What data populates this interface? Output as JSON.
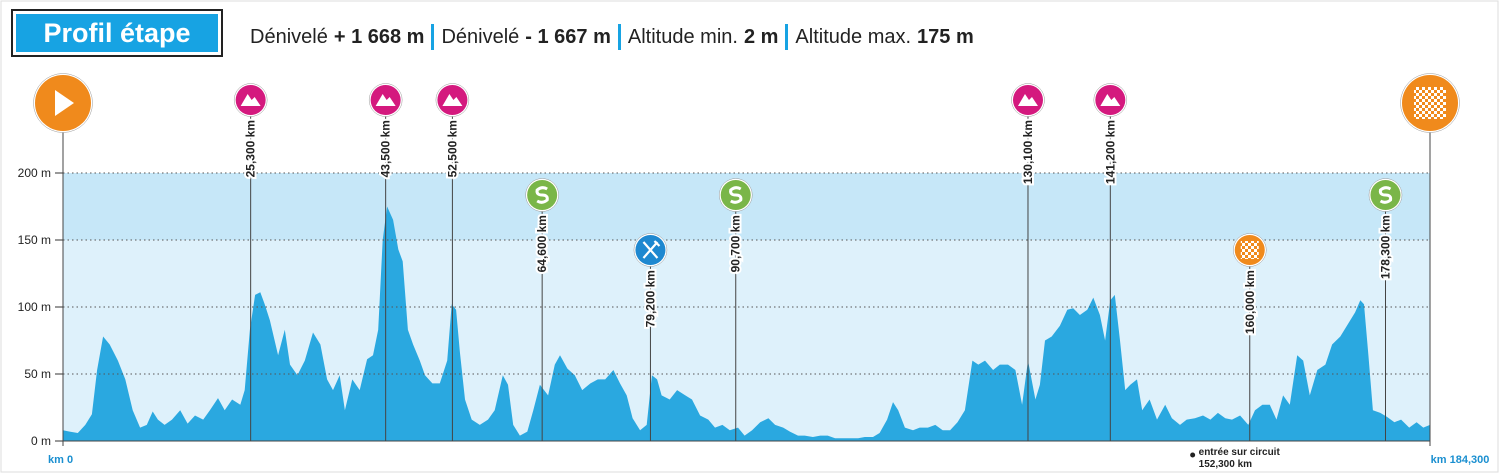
{
  "header": {
    "title": "Profil étape",
    "stats": [
      {
        "label": "Dénivelé",
        "value": "+ 1 668 m"
      },
      {
        "label": "Dénivelé",
        "value": "- 1 667 m"
      },
      {
        "label": "Altitude min.",
        "value": "2 m"
      },
      {
        "label": "Altitude max.",
        "value": "175 m"
      }
    ]
  },
  "chart_data": {
    "type": "area",
    "color": "#2aa8e0",
    "x": [
      0,
      0.9,
      2.0,
      3.0,
      3.9,
      4.6,
      5.4,
      6.3,
      7.4,
      8.4,
      9.4,
      10.4,
      11.3,
      12.1,
      12.8,
      13.7,
      14.7,
      15.8,
      16.8,
      17.8,
      18.9,
      19.8,
      20.9,
      21.8,
      22.8,
      23.9,
      24.5,
      25.2,
      25.9,
      26.6,
      27.2,
      27.9,
      29.0,
      29.9,
      30.6,
      31.6,
      32.6,
      33.7,
      34.7,
      35.6,
      36.4,
      37.3,
      38.0,
      39.0,
      40.0,
      41.0,
      41.8,
      42.5,
      43.1,
      43.7,
      44.5,
      45.2,
      45.8,
      46.5,
      47.2,
      48.1,
      48.8,
      49.8,
      50.8,
      51.8,
      52.4,
      53.0,
      53.5,
      54.2,
      55.1,
      56.2,
      57.3,
      58.2,
      59.3,
      60.0,
      60.7,
      61.6,
      62.6,
      63.4,
      64.3,
      65.4,
      66.3,
      67.0,
      68.0,
      69.0,
      70.0,
      71.1,
      72.1,
      73.1,
      74.2,
      75.1,
      76.0,
      76.8,
      77.8,
      78.7,
      79.4,
      80.1,
      80.7,
      81.8,
      82.8,
      83.9,
      84.8,
      85.9,
      87.0,
      87.9,
      88.9,
      89.9,
      91.0,
      91.9,
      92.9,
      94.0,
      95.1,
      96.0,
      97.1,
      98.0,
      99.1,
      100.0,
      101.1,
      102.1,
      103.1,
      104.1,
      105.2,
      106.1,
      107.2,
      108.1,
      109.2,
      110.1,
      111.1,
      111.9,
      112.6,
      113.5,
      114.6,
      115.5,
      116.6,
      117.6,
      118.6,
      119.6,
      120.6,
      121.6,
      122.6,
      123.4,
      124.3,
      125.4,
      126.3,
      127.4,
      128.4,
      129.3,
      130.1,
      131.1,
      131.7,
      132.4,
      133.3,
      134.4,
      135.4,
      136.2,
      137.1,
      138.1,
      138.9,
      139.8,
      140.5,
      141.2,
      141.8,
      142.5,
      143.2,
      143.9,
      144.8,
      145.5,
      146.5,
      147.5,
      148.6,
      149.5,
      150.6,
      151.5,
      152.6,
      153.7,
      154.7,
      155.7,
      156.7,
      157.6,
      158.7,
      159.8,
      160.7,
      161.7,
      162.7,
      163.6,
      164.5,
      165.4,
      166.4,
      167.2,
      168.1,
      169.1,
      170.2,
      171.1,
      172.2,
      173.1,
      174.2,
      174.9,
      175.4,
      176.0,
      176.6,
      177.6,
      178.5,
      179.5,
      180.4,
      181.5,
      182.5,
      183.4,
      184.3
    ],
    "values": [
      8,
      7,
      6,
      12,
      20,
      53,
      78,
      72,
      60,
      46,
      23,
      10,
      12,
      22,
      16,
      12,
      16,
      23,
      13,
      19,
      16,
      23,
      32,
      23,
      31,
      27,
      38,
      83,
      109,
      111,
      102,
      90,
      64,
      83,
      57,
      49,
      60,
      81,
      72,
      46,
      38,
      49,
      23,
      46,
      38,
      61,
      64,
      83,
      150,
      175,
      165,
      143,
      134,
      83,
      72,
      60,
      49,
      43,
      43,
      60,
      102,
      98,
      67,
      31,
      16,
      12,
      16,
      23,
      49,
      42,
      12,
      4,
      7,
      23,
      42,
      34,
      57,
      64,
      54,
      49,
      38,
      43,
      46,
      46,
      53,
      43,
      34,
      17,
      8,
      12,
      49,
      46,
      34,
      31,
      38,
      34,
      31,
      19,
      16,
      10,
      12,
      8,
      10,
      4,
      8,
      14,
      17,
      12,
      10,
      7,
      4,
      4,
      3,
      4,
      4,
      2,
      2,
      2,
      2,
      3,
      3,
      6,
      16,
      29,
      23,
      10,
      8,
      10,
      10,
      12,
      8,
      8,
      14,
      23,
      60,
      57,
      60,
      53,
      57,
      57,
      53,
      27,
      60,
      31,
      42,
      75,
      78,
      86,
      98,
      99,
      94,
      98,
      107,
      94,
      75,
      105,
      109,
      75,
      38,
      42,
      46,
      23,
      31,
      16,
      27,
      17,
      12,
      16,
      17,
      19,
      16,
      21,
      17,
      16,
      19,
      12,
      23,
      27,
      27,
      16,
      34,
      27,
      64,
      60,
      34,
      53,
      57,
      72,
      78,
      86,
      96,
      105,
      102,
      64,
      23,
      21,
      18,
      14,
      16,
      10,
      14,
      10,
      12
    ],
    "xlim": [
      0,
      184.3
    ],
    "xticks": [
      {
        "value": 0,
        "label": "km 0"
      },
      {
        "value": 184.3,
        "label": "km 184,300"
      }
    ],
    "ylim": [
      0,
      200
    ],
    "yticks": [
      {
        "value": 0,
        "label": "0 m"
      },
      {
        "value": 50,
        "label": "50 m"
      },
      {
        "value": 100,
        "label": "100 m"
      },
      {
        "value": 150,
        "label": "150 m"
      },
      {
        "value": 200,
        "label": "200 m"
      }
    ],
    "grid": true,
    "markers": [
      {
        "km": 0,
        "icon": "start"
      },
      {
        "km": 25.3,
        "label": "25,300 km",
        "icon": "mountain"
      },
      {
        "km": 43.5,
        "label": "43,500 km",
        "icon": "mountain"
      },
      {
        "km": 52.5,
        "label": "52,500 km",
        "icon": "mountain"
      },
      {
        "km": 64.6,
        "label": "64,600 km",
        "icon": "sprint"
      },
      {
        "km": 79.2,
        "label": "79,200 km",
        "icon": "feed"
      },
      {
        "km": 90.7,
        "label": "90,700 km",
        "icon": "sprint"
      },
      {
        "km": 130.1,
        "label": "130,100 km",
        "icon": "mountain"
      },
      {
        "km": 141.2,
        "label": "141,200 km",
        "icon": "mountain"
      },
      {
        "km": 160.0,
        "label": "160,000 km",
        "icon": "circuit"
      },
      {
        "km": 178.3,
        "label": "178,300 km",
        "icon": "sprint"
      },
      {
        "km": 184.3,
        "icon": "finish"
      }
    ],
    "circuit_entry": {
      "km": 152.3,
      "label": "entrée sur circuit",
      "km_label": "152,300 km"
    }
  }
}
